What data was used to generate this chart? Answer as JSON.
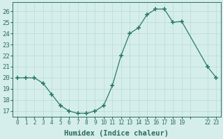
{
  "x": [
    0,
    1,
    2,
    3,
    4,
    5,
    6,
    7,
    8,
    9,
    10,
    11,
    12,
    13,
    14,
    15,
    16,
    17,
    18,
    19,
    22,
    23
  ],
  "y": [
    20,
    20,
    20,
    19.5,
    18.5,
    17.5,
    17,
    16.8,
    16.8,
    17,
    17.5,
    19.3,
    22,
    24,
    24.5,
    25.7,
    26.2,
    26.2,
    25,
    25.1,
    21,
    20
  ],
  "xlabel": "Humidex (Indice chaleur)",
  "xlim": [
    -0.5,
    23.5
  ],
  "ylim": [
    16.5,
    26.8
  ],
  "yticks": [
    17,
    18,
    19,
    20,
    21,
    22,
    23,
    24,
    25,
    26
  ],
  "xtick_labels": [
    "0",
    "1",
    "2",
    "3",
    "4",
    "5",
    "6",
    "7",
    "8",
    "9",
    "10",
    "11",
    "12",
    "13",
    "14",
    "15",
    "16",
    "17",
    "18",
    "19",
    "",
    "22",
    "23"
  ],
  "xtick_positions": [
    0,
    1,
    2,
    3,
    4,
    5,
    6,
    7,
    8,
    9,
    10,
    11,
    12,
    13,
    14,
    15,
    16,
    17,
    18,
    19,
    20,
    22,
    23
  ],
  "line_color": "#2d7a6a",
  "marker_color": "#2d7a6a",
  "bg_color": "#d5eeeb",
  "grid_color": "#b8dbd7",
  "tick_label_color": "#2d6b5e",
  "xlabel_color": "#2d6b5e"
}
